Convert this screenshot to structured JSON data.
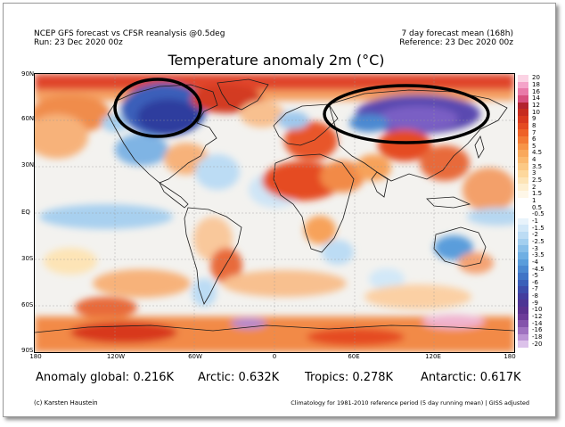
{
  "header": {
    "left_line1": "NCEP GFS forecast vs CFSR reanalysis @0.5deg",
    "left_line2": "Run: 23 Dec 2020 00z",
    "right_line1": "7 day forecast mean (168h)",
    "right_line2": "Reference: 23 Dec 2020 00z"
  },
  "map": {
    "title": "Temperature anomaly 2m (°C)",
    "lat_labels": [
      "90N",
      "60N",
      "30N",
      "EQ",
      "30S",
      "60S",
      "90S"
    ],
    "lon_labels": [
      "180",
      "120W",
      "60W",
      "0",
      "60E",
      "120E",
      "180"
    ],
    "highlighted_regions": [
      "North America cold anomaly circle",
      "Siberia cold anomaly circle"
    ]
  },
  "colorbar": {
    "labels": [
      "20",
      "18",
      "16",
      "14",
      "12",
      "10",
      "9",
      "8",
      "7",
      "6",
      "5",
      "4.5",
      "4",
      "3.5",
      "3",
      "2.5",
      "2",
      "1.5",
      "1",
      "0.5",
      "-0.5",
      "-1",
      "-1.5",
      "-2",
      "-2.5",
      "-3",
      "-3.5",
      "-4",
      "-4.5",
      "-5",
      "-6",
      "-7",
      "-8",
      "-9",
      "-10",
      "-12",
      "-14",
      "-16",
      "-18",
      "-20"
    ],
    "colors": [
      "#fbd3e4",
      "#f4a3c9",
      "#e97aa9",
      "#d8507f",
      "#b3232f",
      "#c62b1f",
      "#d8381e",
      "#e54b21",
      "#ee6127",
      "#f37a35",
      "#f79448",
      "#f9a85c",
      "#fbb96f",
      "#fcc985",
      "#fdd89d",
      "#fde4b6",
      "#feefd0",
      "#fef7e8",
      "#ffffff",
      "#ffffff",
      "#ffffff",
      "#e8f3fb",
      "#d2e8f8",
      "#bcdcf4",
      "#a3cfef",
      "#88bfe9",
      "#6fafe3",
      "#5a9ddb",
      "#4b89d1",
      "#3f74c6",
      "#3a5fb9",
      "#3c4cab",
      "#433d9e",
      "#4d3494",
      "#5b318f",
      "#6c3b99",
      "#8454ab",
      "#9f72c0",
      "#bc95d5",
      "#dcc2ea"
    ]
  },
  "stats": {
    "global": "Anomaly global: 0.216K",
    "arctic": "Arctic: 0.632K",
    "tropics": "Tropics: 0.278K",
    "antarctic": "Antarctic: 0.617K"
  },
  "footer": {
    "credit": "(c) Karsten Haustein",
    "note": "Climatology for 1981-2010 reference period (5 day running mean) | GISS adjusted"
  }
}
